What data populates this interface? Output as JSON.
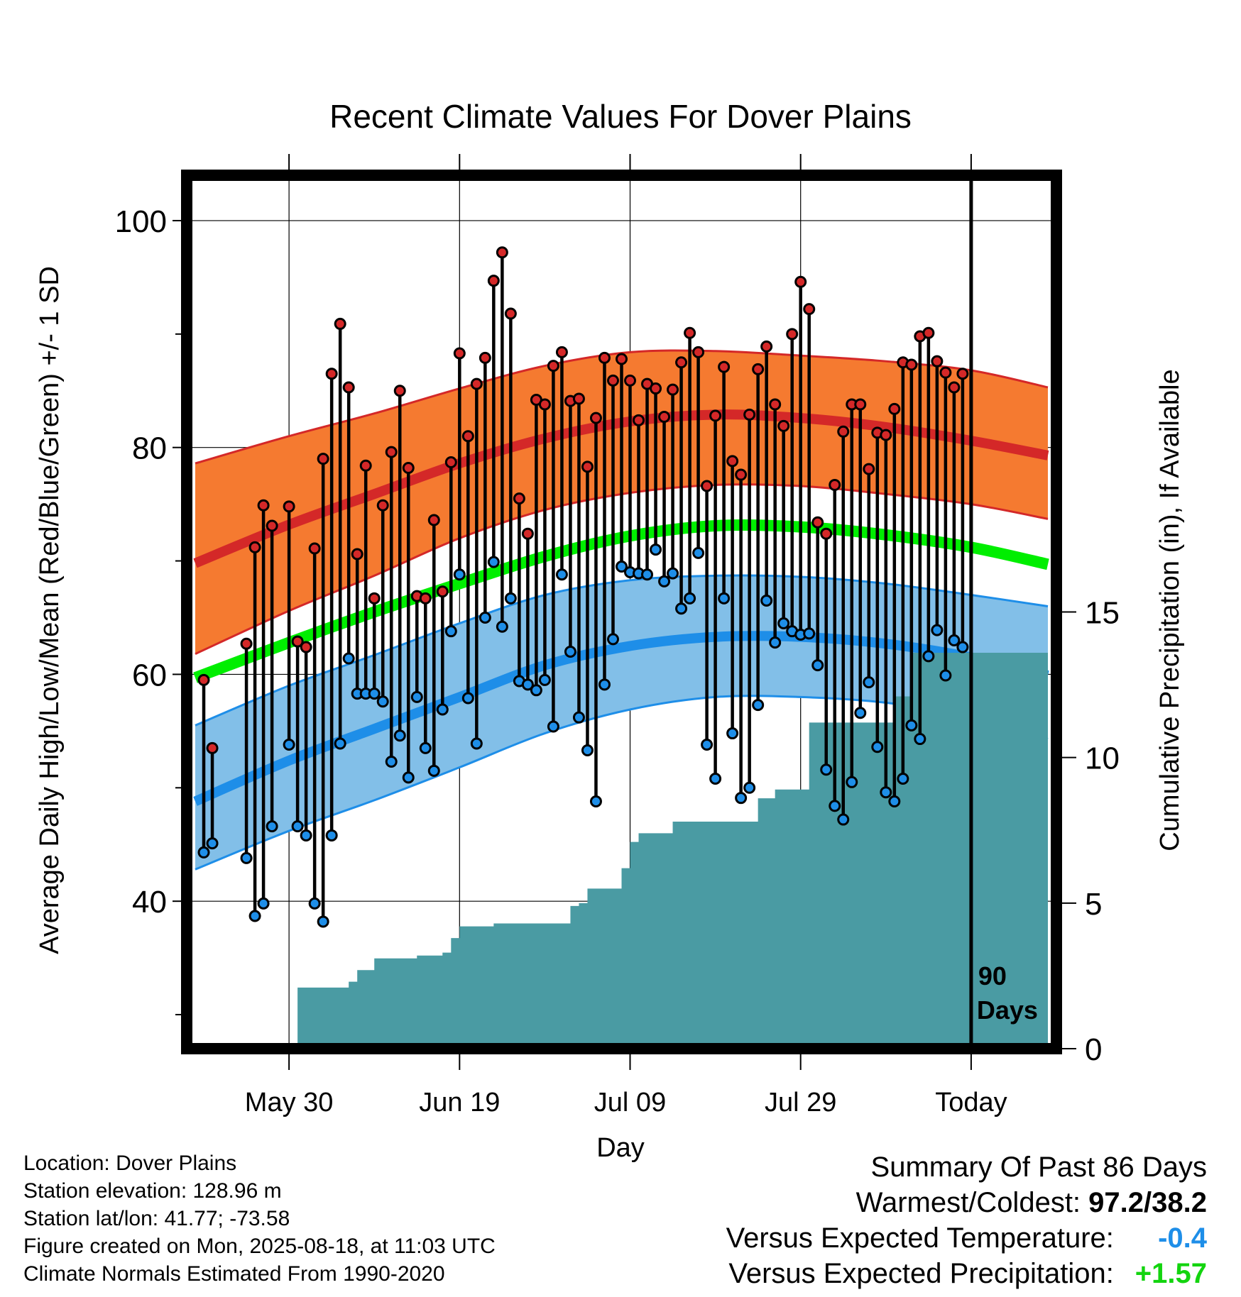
{
  "chart_data": {
    "type": "line",
    "title": "Recent Climate Values For Dover Plains",
    "xlabel": "Day",
    "ylabel": "Average Daily High/Low/Mean (Red/Blue/Green) +/- 1 SD",
    "y2label": "Cumulative Precipitation (in), If Available",
    "x_axis": {
      "range_days_before_today": [
        -92,
        10
      ],
      "tick_labels": [
        "May 30",
        "Jun 19",
        "Jul 09",
        "Jul 29",
        "Today"
      ],
      "tick_days_before_today": [
        -80,
        -60,
        -40,
        -20,
        0
      ]
    },
    "y_axis": {
      "range": [
        27,
        104
      ],
      "ticks": [
        40,
        60,
        80,
        100
      ]
    },
    "y2_axis": {
      "range": [
        0,
        30
      ],
      "ticks": [
        0,
        5,
        10,
        15
      ]
    },
    "marker_label": [
      "90",
      "Days"
    ],
    "colors": {
      "high_band": "#f57a30",
      "high_mean": "#d42828",
      "mean": "#00ee00",
      "low_band": "#82bfe8",
      "low_mean": "#1e8ee8",
      "precip": "#4a9ba3",
      "high_marker": "#d42828",
      "low_marker": "#1e8ee8"
    },
    "normals": {
      "days": [
        -91,
        -80,
        -70,
        -60,
        -50,
        -40,
        -30,
        -20,
        -10,
        0,
        9
      ],
      "high_mean": [
        69.8,
        73.2,
        75.9,
        78.6,
        80.8,
        82.3,
        82.9,
        82.6,
        81.8,
        80.6,
        79.3
      ],
      "high_sd_upper": [
        78.6,
        81.0,
        83.0,
        85.2,
        87.2,
        88.4,
        88.5,
        88.1,
        87.6,
        86.8,
        85.3
      ],
      "high_sd_lower": [
        61.8,
        65.6,
        68.7,
        72.0,
        74.5,
        76.0,
        76.7,
        76.6,
        75.9,
        75.0,
        73.7
      ],
      "mean": [
        59.7,
        62.8,
        65.5,
        68.0,
        70.4,
        72.2,
        73.1,
        73.0,
        72.3,
        71.2,
        69.7
      ],
      "low_mean": [
        48.8,
        52.4,
        55.2,
        58.0,
        60.8,
        62.5,
        63.3,
        63.3,
        62.7,
        61.5,
        59.9
      ],
      "low_sd_upper": [
        55.5,
        59.0,
        61.7,
        64.5,
        67.0,
        68.3,
        68.7,
        68.6,
        68.0,
        67.0,
        66.0
      ],
      "low_sd_lower": [
        42.8,
        46.2,
        48.9,
        51.8,
        54.8,
        56.9,
        58.0,
        58.0,
        57.5,
        56.2,
        54.3
      ]
    },
    "daily": {
      "days": [
        -90,
        -89,
        -85,
        -84,
        -83,
        -82,
        -80,
        -79,
        -78,
        -77,
        -76,
        -75,
        -74,
        -73,
        -72,
        -71,
        -70,
        -69,
        -68,
        -67,
        -66,
        -65,
        -64,
        -63,
        -62,
        -61,
        -60,
        -59,
        -58,
        -57,
        -56,
        -55,
        -54,
        -53,
        -52,
        -51,
        -50,
        -49,
        -48,
        -47,
        -46,
        -45,
        -44,
        -43,
        -42,
        -41,
        -40,
        -39,
        -38,
        -37,
        -36,
        -35,
        -34,
        -33,
        -32,
        -31,
        -30,
        -29,
        -28,
        -27,
        -26,
        -25,
        -24,
        -23,
        -22,
        -21,
        -20,
        -19,
        -18,
        -17,
        -16,
        -15,
        -14,
        -13,
        -12,
        -11,
        -10,
        -9,
        -8,
        -7,
        -6,
        -5,
        -4,
        -3,
        -2,
        -1
      ],
      "high": [
        59.5,
        53.5,
        62.7,
        71.2,
        74.9,
        73.1,
        74.8,
        62.9,
        62.4,
        71.1,
        79.0,
        86.5,
        90.9,
        85.3,
        70.6,
        78.4,
        66.7,
        74.9,
        79.6,
        85.0,
        78.2,
        66.9,
        66.7,
        73.6,
        67.3,
        78.7,
        88.3,
        81.0,
        85.6,
        87.9,
        94.7,
        97.2,
        91.8,
        75.5,
        72.4,
        84.2,
        83.8,
        87.2,
        88.4,
        84.1,
        84.3,
        78.3,
        82.6,
        87.9,
        85.9,
        87.8,
        85.9,
        82.4,
        85.6,
        85.2,
        82.7,
        85.1,
        87.5,
        90.1,
        88.4,
        76.6,
        82.8,
        87.1,
        78.8,
        77.6,
        82.9,
        86.9,
        88.9,
        83.8,
        81.9,
        90.0,
        94.6,
        92.2,
        73.4,
        72.4,
        76.7,
        81.4,
        83.8,
        83.8,
        78.1,
        81.3,
        81.1,
        83.4,
        87.5,
        87.3,
        89.8,
        90.1,
        87.6,
        86.6,
        85.3,
        86.5
      ],
      "low": [
        44.3,
        45.1,
        43.8,
        38.7,
        39.8,
        46.6,
        53.8,
        46.6,
        45.8,
        39.8,
        38.2,
        45.8,
        53.9,
        61.4,
        58.3,
        58.3,
        58.3,
        57.6,
        52.3,
        54.6,
        50.9,
        58.0,
        53.5,
        51.5,
        56.9,
        63.8,
        68.8,
        57.9,
        53.9,
        65.0,
        69.9,
        64.2,
        66.7,
        59.4,
        59.1,
        58.6,
        59.5,
        55.4,
        68.8,
        62.0,
        56.2,
        53.3,
        48.8,
        59.1,
        63.1,
        69.5,
        69.0,
        68.9,
        68.8,
        71.0,
        68.2,
        68.9,
        65.8,
        66.7,
        70.7,
        53.8,
        50.8,
        66.7,
        54.8,
        49.1,
        50.0,
        57.3,
        66.5,
        62.8,
        64.5,
        63.8,
        63.5,
        63.6,
        60.8,
        51.6,
        48.4,
        47.2,
        50.5,
        56.6,
        59.3,
        53.6,
        49.6,
        48.8,
        50.8,
        55.5,
        54.3,
        61.6,
        63.9,
        59.9,
        63.0,
        62.4
      ]
    },
    "precip": {
      "days": [
        -80,
        -79,
        -78,
        -77,
        -76,
        -75,
        -74,
        -73,
        -72,
        -70,
        -66,
        -65,
        -64,
        -62,
        -61,
        -60,
        -58,
        -56,
        -54,
        -53,
        -52,
        -48,
        -47,
        -46,
        -45,
        -44,
        -43,
        -42,
        -41,
        -40,
        -39,
        -38,
        -37,
        -36,
        -35,
        -34,
        -33,
        -32,
        -30,
        -26,
        -25,
        -24,
        -23,
        -22,
        -21,
        -20,
        -19,
        -18,
        -17,
        -16,
        -15,
        -14,
        -13,
        -12,
        -11,
        -10,
        -9,
        -8,
        -7,
        -6,
        -5,
        -4,
        -3,
        -2,
        -1,
        0,
        9
      ],
      "cum_in": [
        0.1,
        2.1,
        2.1,
        2.1,
        2.1,
        2.1,
        2.1,
        2.3,
        2.7,
        3.1,
        3.1,
        3.2,
        3.2,
        3.3,
        3.8,
        4.2,
        4.2,
        4.3,
        4.3,
        4.3,
        4.3,
        4.3,
        4.9,
        5.0,
        5.5,
        5.5,
        5.5,
        5.5,
        6.2,
        7.1,
        7.4,
        7.4,
        7.4,
        7.4,
        7.8,
        7.8,
        7.8,
        7.8,
        7.8,
        7.8,
        8.6,
        8.6,
        8.9,
        8.9,
        8.9,
        8.9,
        11.2,
        11.2,
        11.2,
        11.2,
        11.2,
        11.2,
        11.2,
        11.2,
        11.2,
        11.2,
        12.1,
        12.1,
        13.6,
        13.6,
        13.6,
        13.6,
        13.6,
        13.6,
        13.6,
        13.6,
        13.6
      ]
    }
  },
  "info": {
    "location": "Location: Dover Plains",
    "elevation": "Station elevation: 128.96 m",
    "latlon": "Station lat/lon: 41.77; -73.58",
    "created": "Figure created on Mon, 2025-08-18, at 11:03 UTC",
    "normals": "Climate Normals Estimated From 1990-2020"
  },
  "summary": {
    "title": "Summary Of Past 86 Days",
    "warm_cold_label": "Warmest/Coldest:",
    "warm_cold_value": "97.2/38.2",
    "temp_label": "Versus Expected Temperature:",
    "temp_value": "-0.4",
    "precip_label": "Versus Expected Precipitation:",
    "precip_value": "+1.57"
  }
}
